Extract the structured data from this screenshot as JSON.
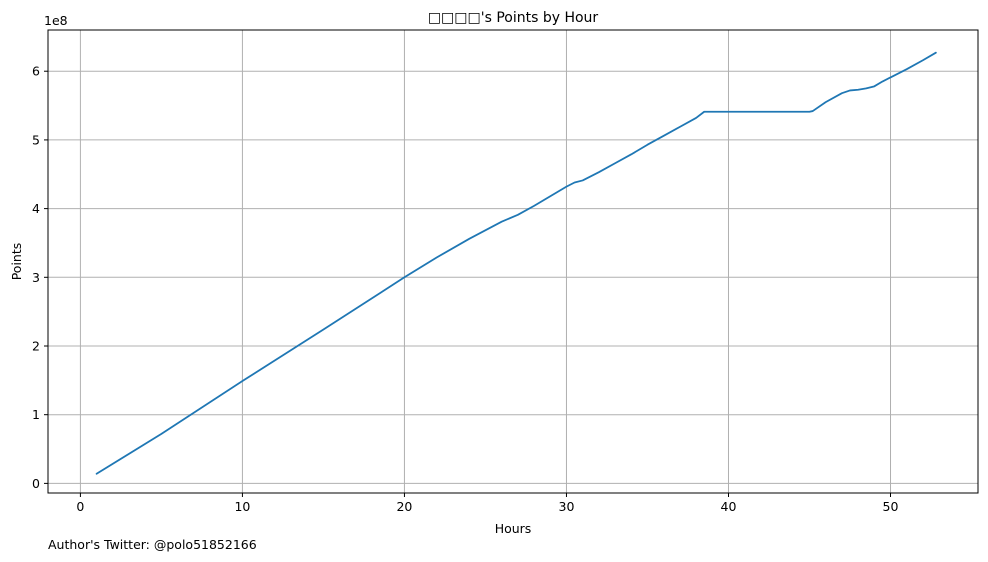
{
  "chart_data": {
    "type": "line",
    "title": "□□□□'s Points by Hour",
    "xlabel": "Hours",
    "ylabel": "Points",
    "y_scale_label": "1e8",
    "y_unit_multiplier": 100000000,
    "xlim": [
      -2,
      55.4
    ],
    "ylim": [
      -0.14,
      6.6
    ],
    "x_ticks": [
      0,
      10,
      20,
      30,
      40,
      50
    ],
    "x_tick_labels": [
      "0",
      "10",
      "20",
      "30",
      "40",
      "50"
    ],
    "y_ticks": [
      0,
      1,
      2,
      3,
      4,
      5,
      6
    ],
    "y_tick_labels": [
      "0",
      "1",
      "2",
      "3",
      "4",
      "5",
      "6"
    ],
    "grid": true,
    "line_color": "#1f77b4",
    "series": [
      {
        "x": [
          1.0,
          5.0,
          10.0,
          15.0,
          20.0,
          22.0,
          24.0,
          26.0,
          27.0,
          28.0,
          29.0,
          30.0,
          30.5,
          31.0,
          32.0,
          33.0,
          34.0,
          35.0,
          36.0,
          37.0,
          38.0,
          38.5,
          40.0,
          42.0,
          44.0,
          45.0,
          45.2,
          46.0,
          47.0,
          47.5,
          48.0,
          48.5,
          49.0,
          49.5,
          50.0,
          51.0,
          52.0,
          52.8
        ],
        "y": [
          0.14,
          0.72,
          1.49,
          2.24,
          3.0,
          3.29,
          3.56,
          3.81,
          3.91,
          4.04,
          4.18,
          4.32,
          4.38,
          4.41,
          4.53,
          4.66,
          4.79,
          4.93,
          5.06,
          5.19,
          5.32,
          5.41,
          5.41,
          5.41,
          5.41,
          5.41,
          5.42,
          5.55,
          5.68,
          5.72,
          5.73,
          5.75,
          5.78,
          5.85,
          5.91,
          6.03,
          6.16,
          6.27
        ]
      }
    ]
  },
  "footnote": "Author's Twitter: @polo51852166"
}
